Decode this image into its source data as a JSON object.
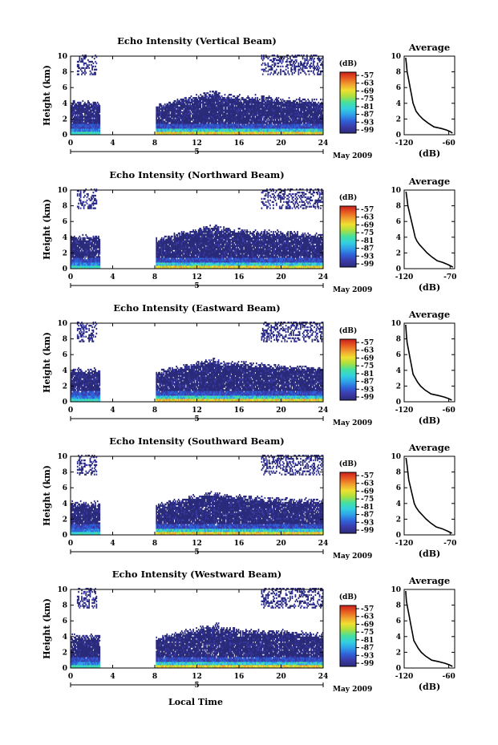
{
  "figure": {
    "month_label": "May 2009",
    "xlabel": "Local Time",
    "day_label": "5",
    "colorbar_unit": "(dB)",
    "average_title": "Average",
    "average_xlabel": "(dB)"
  },
  "colorscale": [
    "#2a2a7a",
    "#3b3ba8",
    "#3060d8",
    "#2f9fe8",
    "#33d0e0",
    "#45e0a0",
    "#a8e040",
    "#f0e030",
    "#f0a030",
    "#e85a20",
    "#c81e1e"
  ],
  "chart_data": [
    {
      "type": "heatmap",
      "title": "Echo Intensity (Vertical Beam)",
      "ylabel": "Height (km)",
      "xlim": [
        0,
        24
      ],
      "ylim": [
        0,
        10
      ],
      "x_ticks": [
        0,
        4,
        8,
        12,
        16,
        20,
        24
      ],
      "y_ticks": [
        0,
        2,
        4,
        6,
        8,
        10
      ],
      "colorbar": {
        "label": "(dB)",
        "ticks": [
          -57,
          -63,
          -69,
          -75,
          -81,
          -87,
          -93,
          -99
        ]
      },
      "data_gaps": [
        [
          2.8,
          8.0
        ]
      ],
      "average_profile": {
        "title": "Average",
        "xlabel": "(dB)",
        "x_ticks": [
          -120,
          -60
        ],
        "xlim": [
          -120,
          -52
        ],
        "ylim": [
          0,
          10
        ],
        "x": [
          -55,
          -58,
          -63,
          -70,
          -80,
          -88,
          -95,
          -100,
          -104,
          -106,
          -108,
          -110,
          -112,
          -114,
          -116,
          -117,
          -118
        ],
        "y": [
          0.2,
          0.4,
          0.6,
          0.8,
          1.0,
          1.5,
          2.0,
          2.5,
          3.0,
          3.5,
          4.0,
          5.0,
          6.0,
          7.0,
          8.0,
          9.0,
          9.8
        ]
      }
    },
    {
      "type": "heatmap",
      "title": "Echo Intensity (Northward Beam)",
      "ylabel": "Height (km)",
      "xlim": [
        0,
        24
      ],
      "ylim": [
        0,
        10
      ],
      "x_ticks": [
        0,
        4,
        8,
        12,
        16,
        20,
        24
      ],
      "y_ticks": [
        0,
        2,
        4,
        6,
        8,
        10
      ],
      "colorbar": {
        "label": "(dB)",
        "ticks": [
          -57,
          -63,
          -69,
          -75,
          -81,
          -87,
          -93,
          -99
        ]
      },
      "data_gaps": [
        [
          2.8,
          8.0
        ]
      ],
      "average_profile": {
        "title": "Average",
        "xlabel": "(dB)",
        "x_ticks": [
          -120,
          -70
        ],
        "xlim": [
          -120,
          -65
        ],
        "ylim": [
          0,
          10
        ],
        "x": [
          -67,
          -72,
          -78,
          -84,
          -90,
          -95,
          -99,
          -103,
          -106,
          -108,
          -110,
          -112,
          -114,
          -116,
          -117,
          -118
        ],
        "y": [
          0.2,
          0.5,
          0.8,
          1.0,
          1.5,
          2.0,
          2.5,
          3.0,
          3.5,
          4.0,
          5.0,
          6.0,
          7.0,
          8.0,
          9.0,
          9.8
        ]
      }
    },
    {
      "type": "heatmap",
      "title": "Echo Intensity (Eastward Beam)",
      "ylabel": "Height (km)",
      "xlim": [
        0,
        24
      ],
      "ylim": [
        0,
        10
      ],
      "x_ticks": [
        0,
        4,
        8,
        12,
        16,
        20,
        24
      ],
      "y_ticks": [
        0,
        2,
        4,
        6,
        8,
        10
      ],
      "colorbar": {
        "label": "(dB)",
        "ticks": [
          -57,
          -63,
          -69,
          -75,
          -81,
          -87,
          -93,
          -99
        ]
      },
      "data_gaps": [
        [
          2.8,
          8.0
        ]
      ],
      "average_profile": {
        "title": "Average",
        "xlabel": "(dB)",
        "x_ticks": [
          -120,
          -60
        ],
        "xlim": [
          -120,
          -52
        ],
        "ylim": [
          0,
          10
        ],
        "x": [
          -56,
          -60,
          -66,
          -74,
          -84,
          -92,
          -98,
          -102,
          -105,
          -108,
          -110,
          -112,
          -114,
          -116,
          -117,
          -118
        ],
        "y": [
          0.2,
          0.4,
          0.6,
          0.8,
          1.0,
          1.5,
          2.0,
          2.5,
          3.0,
          3.5,
          4.5,
          5.5,
          6.5,
          7.5,
          8.5,
          9.8
        ]
      }
    },
    {
      "type": "heatmap",
      "title": "Echo Intensity (Southward Beam)",
      "ylabel": "Height (km)",
      "xlim": [
        0,
        24
      ],
      "ylim": [
        0,
        10
      ],
      "x_ticks": [
        0,
        4,
        8,
        12,
        16,
        20,
        24
      ],
      "y_ticks": [
        0,
        2,
        4,
        6,
        8,
        10
      ],
      "colorbar": {
        "label": "(dB)",
        "ticks": [
          -57,
          -63,
          -69,
          -75,
          -81,
          -87,
          -93,
          -99
        ]
      },
      "data_gaps": [
        [
          2.8,
          8.0
        ]
      ],
      "average_profile": {
        "title": "Average",
        "xlabel": "(dB)",
        "x_ticks": [
          -120,
          -70
        ],
        "xlim": [
          -120,
          -65
        ],
        "ylim": [
          0,
          10
        ],
        "x": [
          -68,
          -73,
          -79,
          -85,
          -91,
          -96,
          -100,
          -104,
          -107,
          -109,
          -111,
          -113,
          -115,
          -116,
          -117,
          -118
        ],
        "y": [
          0.2,
          0.5,
          0.8,
          1.0,
          1.5,
          2.0,
          2.5,
          3.0,
          3.5,
          4.0,
          5.0,
          6.0,
          7.0,
          8.0,
          9.0,
          9.8
        ]
      }
    },
    {
      "type": "heatmap",
      "title": "Echo Intensity (Westward Beam)",
      "ylabel": "Height (km)",
      "xlim": [
        0,
        24
      ],
      "ylim": [
        0,
        10
      ],
      "x_ticks": [
        0,
        4,
        8,
        12,
        16,
        20,
        24
      ],
      "y_ticks": [
        0,
        2,
        4,
        6,
        8,
        10
      ],
      "colorbar": {
        "label": "(dB)",
        "ticks": [
          -57,
          -63,
          -69,
          -75,
          -81,
          -87,
          -93,
          -99
        ]
      },
      "data_gaps": [
        [
          2.8,
          8.0
        ]
      ],
      "average_profile": {
        "title": "Average",
        "xlabel": "(dB)",
        "x_ticks": [
          -120,
          -60
        ],
        "xlim": [
          -120,
          -52
        ],
        "ylim": [
          0,
          10
        ],
        "x": [
          -55,
          -59,
          -65,
          -73,
          -83,
          -91,
          -97,
          -101,
          -104,
          -107,
          -109,
          -111,
          -113,
          -115,
          -117,
          -118
        ],
        "y": [
          0.2,
          0.4,
          0.6,
          0.8,
          1.0,
          1.5,
          2.0,
          2.5,
          3.0,
          3.5,
          4.5,
          5.5,
          6.5,
          7.5,
          8.5,
          9.8
        ]
      }
    }
  ]
}
